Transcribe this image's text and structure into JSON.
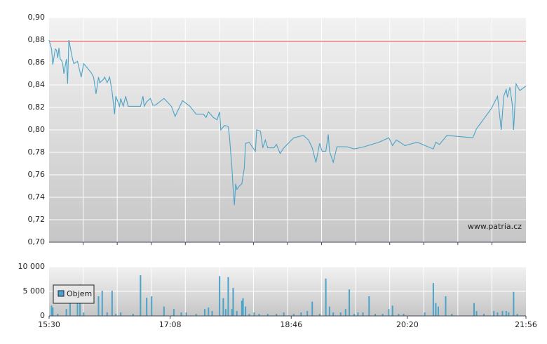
{
  "chart_data": [
    {
      "type": "line",
      "color": "#4aa3c8",
      "annotation": "www.patria.cz",
      "reference_line": {
        "value": 0.879,
        "color": "#e05a5a"
      },
      "grid": true,
      "xlim": [
        930,
        1316
      ],
      "ylim": [
        0.7,
        0.9
      ],
      "yticks": [
        {
          "value": 0.7,
          "label": "0,70"
        },
        {
          "value": 0.72,
          "label": "0,72"
        },
        {
          "value": 0.74,
          "label": "0,74"
        },
        {
          "value": 0.76,
          "label": "0,76"
        },
        {
          "value": 0.78,
          "label": "0,78"
        },
        {
          "value": 0.8,
          "label": "0,80"
        },
        {
          "value": 0.82,
          "label": "0,82"
        },
        {
          "value": 0.84,
          "label": "0,84"
        },
        {
          "value": 0.86,
          "label": "0,86"
        },
        {
          "value": 0.88,
          "label": "0,88"
        },
        {
          "value": 0.9,
          "label": "0,90"
        }
      ],
      "x": [
        930,
        932,
        933,
        935,
        936,
        937,
        938,
        939,
        940,
        941,
        942,
        944,
        945,
        946,
        949,
        950,
        953,
        956,
        958,
        961,
        964,
        966,
        968,
        970,
        971,
        974,
        975,
        977,
        979,
        981,
        983,
        984,
        987,
        988,
        990,
        992,
        994,
        998,
        1004,
        1006,
        1007,
        1009,
        1012,
        1014,
        1016,
        1023,
        1029,
        1032,
        1038,
        1044,
        1049,
        1055,
        1057,
        1059,
        1063,
        1066,
        1068,
        1069,
        1072,
        1075,
        1076,
        1078,
        1079,
        1080,
        1081,
        1082,
        1084,
        1086,
        1088,
        1089,
        1092,
        1095,
        1097,
        1098,
        1101,
        1103,
        1105,
        1107,
        1112,
        1114,
        1117,
        1120,
        1128,
        1136,
        1140,
        1143,
        1146,
        1149,
        1151,
        1154,
        1156,
        1157,
        1160,
        1163,
        1165,
        1171,
        1177,
        1185,
        1197,
        1205,
        1208,
        1211,
        1214,
        1218,
        1228,
        1241,
        1243,
        1246,
        1252,
        1273,
        1276,
        1288,
        1293,
        1296,
        1298,
        1300,
        1301,
        1303,
        1305,
        1306,
        1308,
        1311,
        1316
      ],
      "values": [
        0.88,
        0.872,
        0.858,
        0.872,
        0.871,
        0.864,
        0.873,
        0.863,
        0.862,
        0.859,
        0.85,
        0.863,
        0.841,
        0.88,
        0.863,
        0.859,
        0.861,
        0.847,
        0.859,
        0.855,
        0.851,
        0.847,
        0.832,
        0.847,
        0.842,
        0.845,
        0.847,
        0.842,
        0.847,
        0.834,
        0.814,
        0.83,
        0.821,
        0.828,
        0.821,
        0.83,
        0.821,
        0.821,
        0.821,
        0.83,
        0.821,
        0.825,
        0.828,
        0.822,
        0.822,
        0.828,
        0.821,
        0.812,
        0.826,
        0.821,
        0.814,
        0.814,
        0.811,
        0.816,
        0.811,
        0.809,
        0.816,
        0.8,
        0.804,
        0.803,
        0.794,
        0.766,
        0.747,
        0.733,
        0.752,
        0.747,
        0.75,
        0.752,
        0.766,
        0.788,
        0.789,
        0.784,
        0.781,
        0.8,
        0.799,
        0.784,
        0.791,
        0.784,
        0.784,
        0.787,
        0.779,
        0.784,
        0.793,
        0.795,
        0.791,
        0.784,
        0.771,
        0.788,
        0.781,
        0.781,
        0.796,
        0.781,
        0.771,
        0.785,
        0.785,
        0.785,
        0.783,
        0.785,
        0.789,
        0.793,
        0.786,
        0.791,
        0.789,
        0.786,
        0.789,
        0.783,
        0.789,
        0.787,
        0.795,
        0.793,
        0.801,
        0.819,
        0.83,
        0.8,
        0.83,
        0.836,
        0.829,
        0.838,
        0.822,
        0.8,
        0.841,
        0.835,
        0.839
      ]
    },
    {
      "type": "bar",
      "legend": "lower left",
      "grid": true,
      "xlim": [
        930,
        1316
      ],
      "xticks": [
        {
          "value": 930,
          "label": "15:30"
        },
        {
          "value": 1028,
          "label": "17:08"
        },
        {
          "value": 1126,
          "label": "18:46"
        },
        {
          "value": 1220,
          "label": "20:20"
        },
        {
          "value": 1316,
          "label": "21:56"
        }
      ],
      "ylim": [
        0,
        10000
      ],
      "yticks": [
        0,
        {
          "value": 5000,
          "label": "5 000"
        },
        {
          "value": 10000,
          "label": "10 000"
        }
      ],
      "x": [
        932,
        933,
        937,
        944,
        947,
        953,
        955,
        958,
        970,
        973,
        977,
        981,
        984,
        988,
        998,
        1004,
        1009,
        1013,
        1023,
        1031,
        1037,
        1041,
        1049,
        1056,
        1059,
        1062,
        1068,
        1071,
        1073,
        1075,
        1078,
        1079,
        1082,
        1086,
        1087,
        1089,
        1092,
        1096,
        1100,
        1107,
        1114,
        1120,
        1128,
        1134,
        1139,
        1143,
        1149,
        1154,
        1157,
        1160,
        1166,
        1170,
        1173,
        1177,
        1180,
        1184,
        1189,
        1194,
        1200,
        1205,
        1208,
        1213,
        1217,
        1234,
        1241,
        1243,
        1245,
        1251,
        1256,
        1274,
        1276,
        1282,
        1290,
        1293,
        1297,
        1300,
        1302,
        1306,
        1309
      ],
      "series": [
        {
          "name": "Objem",
          "color": "#4aa3c8",
          "values": [
            2100,
            1700,
            430,
            1400,
            2600,
            3600,
            6400,
            710,
            4000,
            5100,
            710,
            5100,
            430,
            710,
            430,
            8300,
            3700,
            4000,
            1900,
            1400,
            710,
            710,
            430,
            1400,
            1700,
            1000,
            8100,
            3600,
            1400,
            7900,
            1400,
            5700,
            1000,
            3100,
            3600,
            1900,
            430,
            710,
            430,
            430,
            430,
            710,
            430,
            710,
            1000,
            2900,
            430,
            7600,
            1900,
            710,
            710,
            1400,
            5400,
            430,
            710,
            710,
            4000,
            430,
            430,
            1400,
            2100,
            430,
            430,
            710,
            6700,
            2600,
            1900,
            4000,
            430,
            2600,
            1000,
            430,
            1000,
            710,
            1000,
            1000,
            710,
            4900,
            430
          ]
        }
      ]
    }
  ]
}
